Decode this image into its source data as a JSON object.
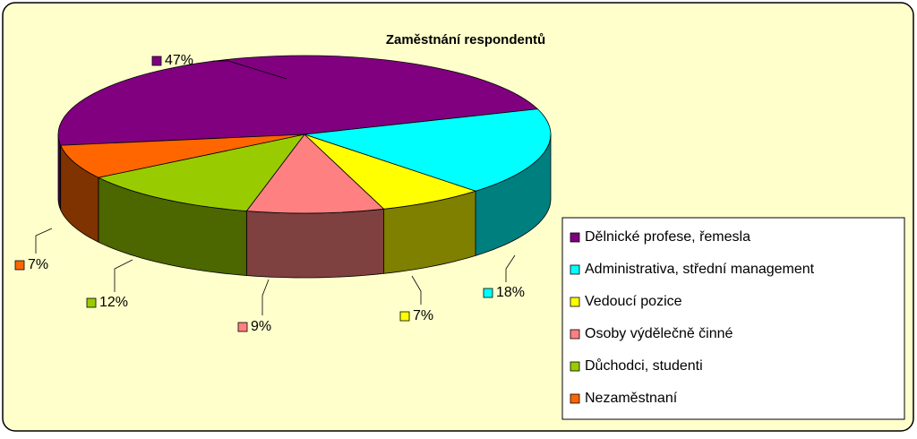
{
  "chart_data": {
    "type": "pie",
    "title": "Zaměstnání respondentů",
    "categories": [
      "Dělnické profese, řemesla",
      "Administrativa, střední management",
      "Vedoucí pozice",
      "Osoby výdělečně činné",
      "Důchodci, studenti",
      "Nezaměstnaní"
    ],
    "values": [
      47,
      18,
      7,
      9,
      12,
      7
    ],
    "value_labels": [
      "47%",
      "18%",
      "7%",
      "9%",
      "12%",
      "7%"
    ],
    "colors": [
      "#800080",
      "#00ffff",
      "#ffff00",
      "#ff8080",
      "#99cc00",
      "#ff6600"
    ],
    "legend": "right"
  }
}
